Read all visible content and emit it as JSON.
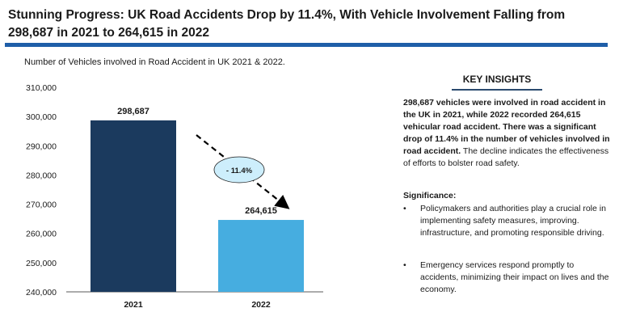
{
  "header": {
    "title": "Stunning Progress: UK Road Accidents Drop by 11.4%, With Vehicle Involvement Falling from 298,687 in 2021 to 264,615 in 2022"
  },
  "chart_data": {
    "type": "bar",
    "title": "Number of Vehicles involved in Road Accident in UK 2021 & 2022.",
    "categories": [
      "2021",
      "2022"
    ],
    "values": [
      298687,
      264615
    ],
    "value_labels": [
      "298,687",
      "264,615"
    ],
    "ylim": [
      240000,
      310000
    ],
    "yticks": [
      240000,
      250000,
      260000,
      270000,
      280000,
      290000,
      300000,
      310000
    ],
    "ytick_labels": [
      "240,000",
      "250,000",
      "260,000",
      "270,000",
      "280,000",
      "290,000",
      "300,000",
      "310,000"
    ],
    "colors": [
      "#1b3a5e",
      "#46ade0"
    ],
    "grid": false,
    "annotation": {
      "text": "- 11.4%",
      "fill": "#cdeefc"
    }
  },
  "insights": {
    "heading": "KEY INSIGHTS",
    "bold_text": "298,687 vehicles were involved in road accident in the UK in 2021, while  2022 recorded 264,615 vehicular road accident. There was a significant drop of 11.4% in the number of vehicles involved in road accident.",
    "normal_text": " The decline indicates the effectiveness of efforts to bolster road safety.",
    "significance_heading": "Significance:",
    "bullet_glyph": "•",
    "bullets": [
      " Policymakers and authorities play a crucial role in implementing safety measures, improving. infrastructure, and promoting responsible driving.",
      " Emergency services respond promptly to accidents, minimizing their impact on lives and the economy."
    ]
  }
}
